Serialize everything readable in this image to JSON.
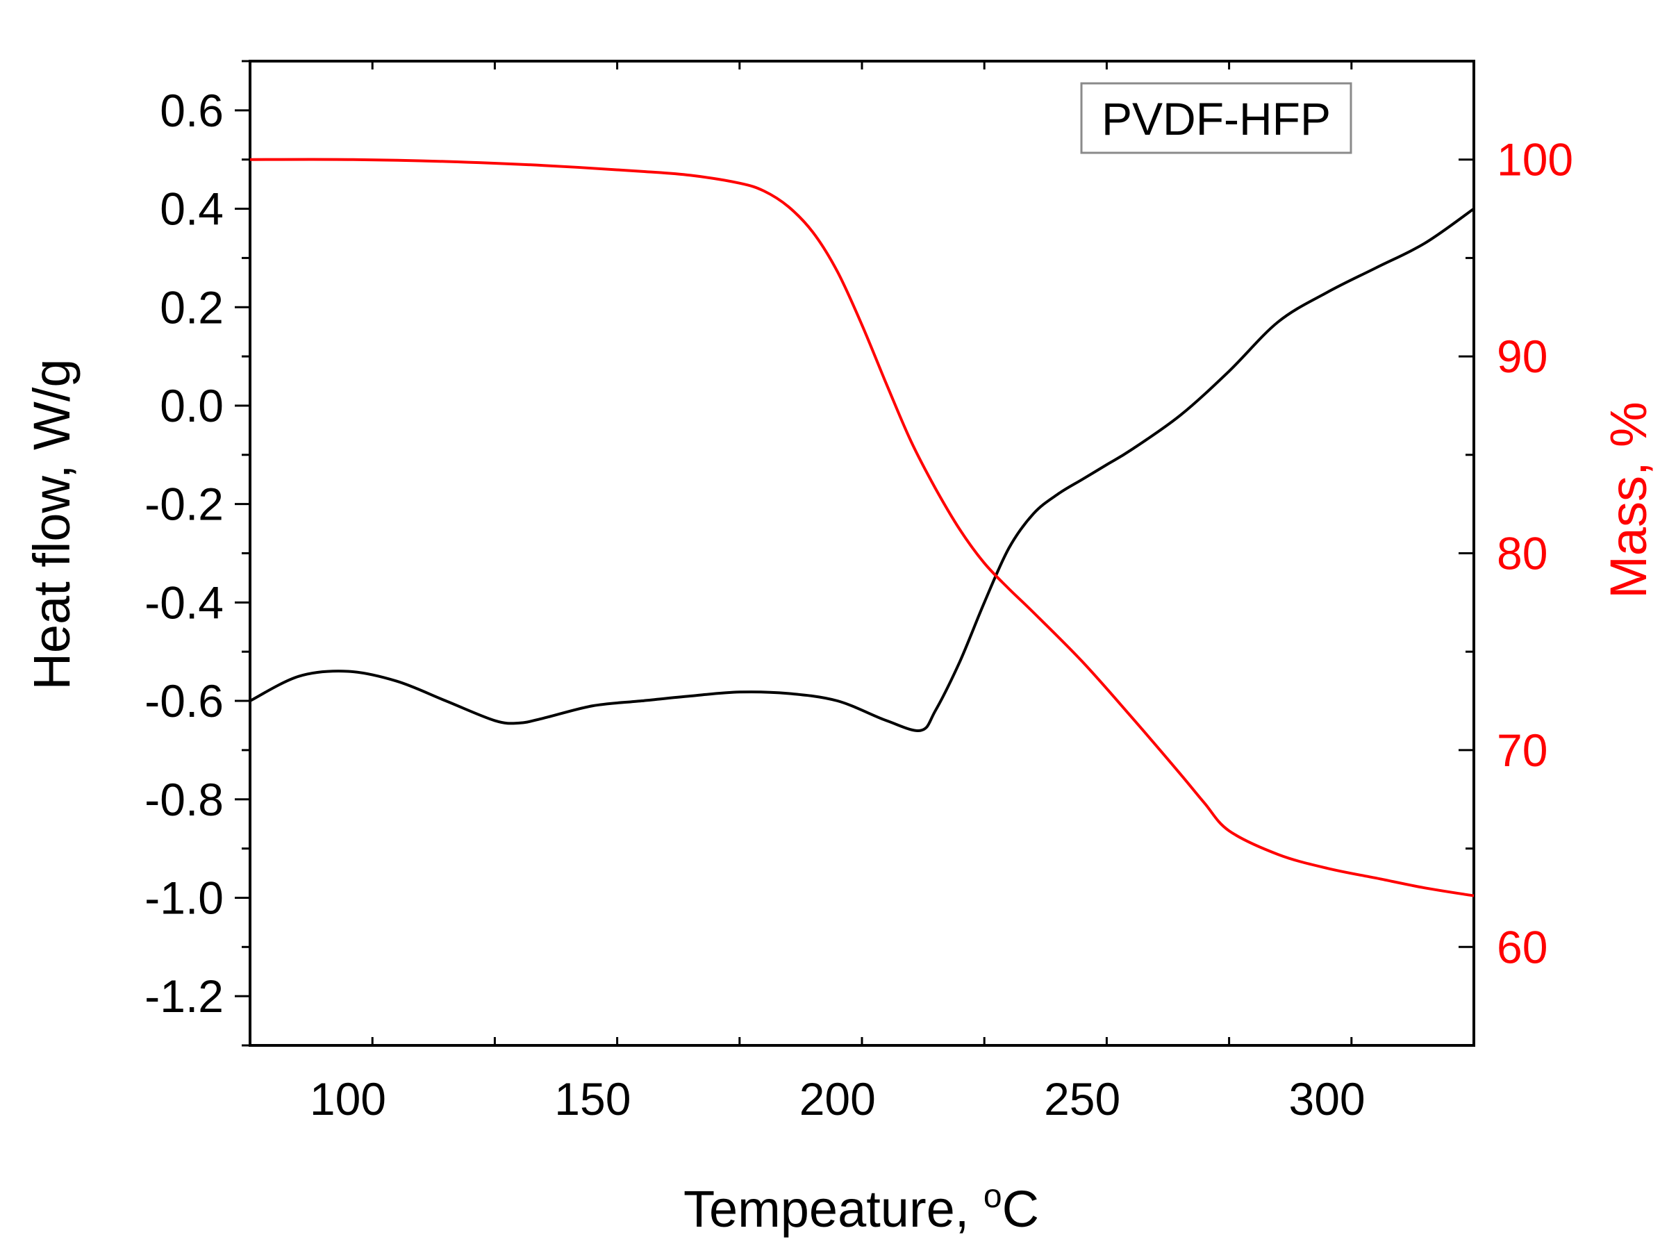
{
  "chart_data": {
    "type": "line",
    "title": "",
    "legend": {
      "text": "PVDF-HFP",
      "position": "top-right"
    },
    "xlabel": {
      "main": "Tempeature, ",
      "sup": "o",
      "unit": "C"
    },
    "ylabel_left": "Heat flow, W/g",
    "ylabel_right": "Mass, %",
    "xlim": [
      80,
      330
    ],
    "ylim_left": [
      -1.3,
      0.7
    ],
    "ylim_right": [
      55,
      105
    ],
    "x_ticks": [
      100,
      150,
      200,
      250,
      300
    ],
    "x_tick_labels": [
      "100",
      "150",
      "200",
      "250",
      "300"
    ],
    "y_left_ticks": [
      0.6,
      0.4,
      0.2,
      0.0,
      -0.2,
      -0.4,
      -0.6,
      -0.8,
      -1.0,
      -1.2
    ],
    "y_left_tick_labels": [
      "0.6",
      "0.4",
      "0.2",
      "0.0",
      "-0.2",
      "-0.4",
      "-0.6",
      "-0.8",
      "-1.0",
      "-1.2"
    ],
    "y_right_ticks": [
      100,
      90,
      80,
      70,
      60
    ],
    "y_right_tick_labels": [
      "100",
      "90",
      "80",
      "70",
      "60"
    ],
    "colors": {
      "heat": "#000000",
      "mass": "#ff0000",
      "axis": "#000000",
      "right_axis_text": "#ff0000"
    },
    "series": [
      {
        "name": "Heat flow",
        "axis": "left",
        "color": "#000000",
        "x": [
          80,
          90,
          100,
          110,
          120,
          130,
          135,
          140,
          150,
          160,
          170,
          180,
          190,
          200,
          210,
          217,
          220,
          225,
          230,
          235,
          240,
          245,
          250,
          255,
          260,
          270,
          280,
          290,
          300,
          310,
          320,
          330
        ],
        "y": [
          -0.6,
          -0.55,
          -0.54,
          -0.56,
          -0.6,
          -0.64,
          -0.645,
          -0.635,
          -0.61,
          -0.6,
          -0.59,
          -0.582,
          -0.585,
          -0.6,
          -0.64,
          -0.66,
          -0.62,
          -0.52,
          -0.4,
          -0.29,
          -0.22,
          -0.18,
          -0.15,
          -0.12,
          -0.09,
          -0.02,
          0.07,
          0.17,
          0.23,
          0.28,
          0.33,
          0.4
        ]
      },
      {
        "name": "Mass",
        "axis": "right",
        "color": "#ff0000",
        "x": [
          80,
          100,
          120,
          140,
          160,
          170,
          180,
          185,
          190,
          195,
          200,
          205,
          210,
          215,
          220,
          225,
          230,
          235,
          240,
          250,
          260,
          270,
          275,
          280,
          290,
          300,
          310,
          320,
          330
        ],
        "y": [
          100,
          100,
          99.9,
          99.7,
          99.4,
          99.2,
          98.8,
          98.4,
          97.6,
          96.3,
          94.3,
          91.6,
          88.6,
          85.7,
          83.3,
          81.2,
          79.5,
          78.2,
          77.0,
          74.5,
          71.7,
          68.8,
          67.3,
          65.9,
          64.7,
          64.0,
          63.5,
          63.0,
          62.6
        ]
      }
    ]
  }
}
